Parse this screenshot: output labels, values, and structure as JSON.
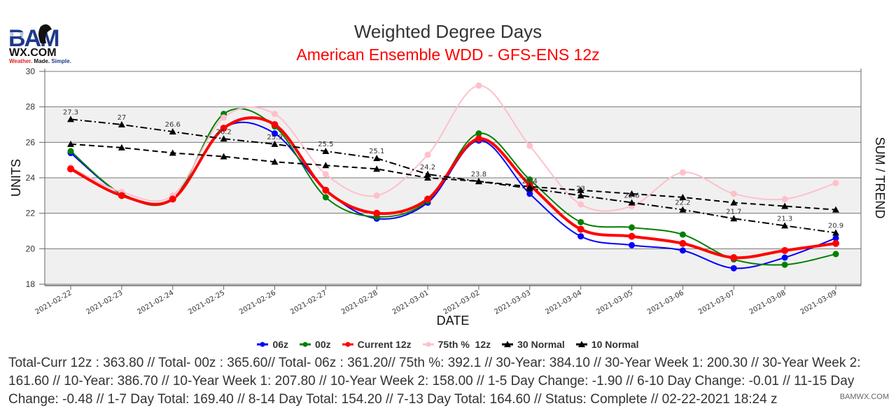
{
  "logo": {
    "brand_top": "BAM",
    "brand_bottom": "WX.COM",
    "tagline_parts": [
      "Weather.",
      " Made.",
      " Simple."
    ]
  },
  "watermark": "BAMWX.COM",
  "colors": {
    "06z": "#0000ff",
    "00z": "#008000",
    "current_12z": "#ff0000",
    "p75_12z": "#ffc0cb",
    "normal": "#000000",
    "subtitle": "#ff0000",
    "band": "#f0f0f0"
  },
  "chart_data": {
    "type": "line",
    "title": "Weighted Degree Days",
    "subtitle": "American Ensemble WDD - GFS-ENS 12z",
    "xlabel": "DATE",
    "ylabel": "UNITS",
    "y2label": "SUM / TREND",
    "ylim": [
      18,
      30
    ],
    "yticks": [
      18,
      20,
      22,
      24,
      26,
      28,
      30
    ],
    "grid": true,
    "legend_position": "bottom",
    "x": [
      "2021-02-22",
      "2021-02-23",
      "2021-02-24",
      "2021-02-25",
      "2021-02-26",
      "2021-02-27",
      "2021-02-28",
      "2021-03-01",
      "2021-03-02",
      "2021-03-03",
      "2021-03-04",
      "2021-03-05",
      "2021-03-06",
      "2021-03-07",
      "2021-03-08",
      "2021-03-09"
    ],
    "series": [
      {
        "key": "06z",
        "name": "06z",
        "style": "smooth",
        "width": 2,
        "values": [
          25.4,
          23.1,
          22.8,
          26.8,
          26.5,
          23.3,
          21.7,
          22.6,
          26.1,
          23.1,
          20.7,
          20.2,
          19.9,
          18.9,
          19.5,
          20.6
        ]
      },
      {
        "key": "00z",
        "name": "00z",
        "style": "smooth",
        "width": 2,
        "values": [
          25.5,
          23.1,
          22.8,
          27.6,
          26.9,
          22.9,
          21.8,
          22.7,
          26.5,
          23.9,
          21.5,
          21.2,
          20.8,
          19.4,
          19.1,
          19.7
        ]
      },
      {
        "key": "p75_12z",
        "name": "75th %  12z",
        "style": "smooth",
        "width": 2,
        "values": [
          24.6,
          23.2,
          23.0,
          27.4,
          27.6,
          24.2,
          23.0,
          25.3,
          29.2,
          25.8,
          22.5,
          22.4,
          24.3,
          23.1,
          22.8,
          23.7
        ]
      },
      {
        "key": "current_12z",
        "name": "Current 12z",
        "style": "smooth",
        "width": 4,
        "values": [
          24.5,
          23.0,
          22.8,
          26.8,
          27.0,
          23.3,
          22.0,
          22.8,
          26.2,
          23.6,
          21.1,
          20.7,
          20.3,
          19.5,
          19.9,
          20.3
        ]
      },
      {
        "key": "normal30",
        "name": "30 Normal",
        "style": "dashed",
        "width": 2,
        "values": [
          25.9,
          25.7,
          25.4,
          25.2,
          24.9,
          24.7,
          24.5,
          24.0,
          23.8,
          23.5,
          23.3,
          23.1,
          22.9,
          22.6,
          22.4,
          22.2
        ]
      },
      {
        "key": "normal10",
        "name": "10 Normal",
        "style": "dashdot",
        "width": 2,
        "labeled": true,
        "values": [
          27.3,
          27.0,
          26.6,
          26.2,
          25.9,
          25.5,
          25.1,
          24.2,
          23.8,
          23.4,
          23.0,
          22.6,
          22.2,
          21.7,
          21.3,
          20.9
        ]
      }
    ],
    "legend_order": [
      "06z",
      "00z",
      "current_12z",
      "p75_12z",
      "normal30",
      "normal10"
    ]
  },
  "summary": "Total-Curr 12z : 363.80 // Total- 00z : 365.60// Total- 06z : 361.20// 75th %: 392.1 // 30-Year: 384.10 // 30-Year Week 1: 200.30 // 30-Year Week 2: 161.60 // 10-Year: 386.70 // 10-Year Week 1: 207.80 // 10-Year Week 2: 158.00 // 1-5 Day Change: -1.90 // 6-10 Day Change: -0.01 // 11-15 Day Change: -0.48 // 1-7 Day Total: 169.40 // 8-14 Day Total: 154.20 // 7-13 Day Total: 164.60 // Status:  Complete  // 02-22-2021 18:24 z"
}
